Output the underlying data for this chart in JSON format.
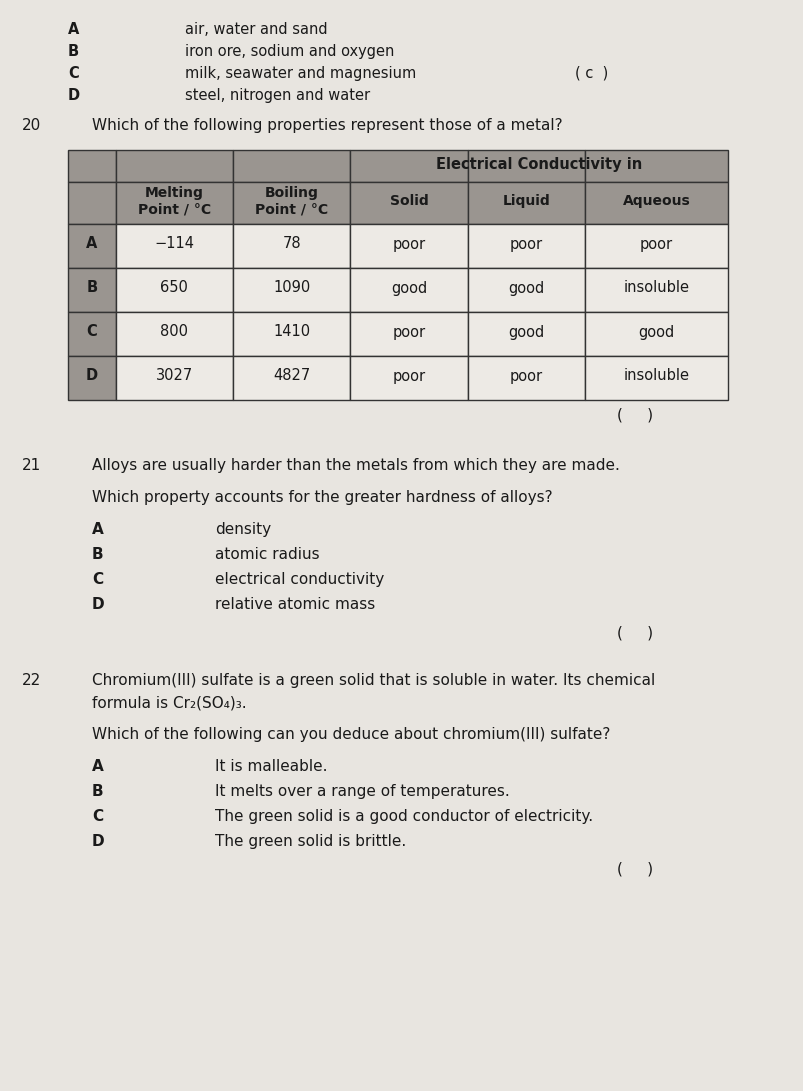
{
  "bg_color": "#c8c4c0",
  "paper_color": "#e8e5e0",
  "text_color": "#1a1a1a",
  "top_section": {
    "labels": [
      "A",
      "B",
      "C",
      "D"
    ],
    "options": [
      "air, water and sand",
      "iron ore, sodium and oxygen",
      "milk, seawater and magnesium",
      "steel, nitrogen and water"
    ],
    "answer_text": "( c  )"
  },
  "q20": {
    "num": "20",
    "question": "Which of the following properties represent those of a metal?",
    "table": {
      "sub_headers": [
        "",
        "Melting\nPoint / °C",
        "Boiling\nPoint / °C",
        "Solid",
        "Liquid",
        "Aqueous"
      ],
      "rows": [
        [
          "A",
          "−114",
          "78",
          "poor",
          "poor",
          "poor"
        ],
        [
          "B",
          "650",
          "1090",
          "good",
          "good",
          "insoluble"
        ],
        [
          "C",
          "800",
          "1410",
          "poor",
          "good",
          "good"
        ],
        [
          "D",
          "3027",
          "4827",
          "poor",
          "poor",
          "insoluble"
        ]
      ],
      "header_bg": "#9a9590",
      "cell_bg": "#edeae5",
      "border_color": "#333333"
    },
    "answer_text": "(     )"
  },
  "q21": {
    "num": "21",
    "stem1": "Alloys are usually harder than the metals from which they are made.",
    "stem2": "Which property accounts for the greater hardness of alloys?",
    "labels": [
      "A",
      "B",
      "C",
      "D"
    ],
    "options": [
      "density",
      "atomic radius",
      "electrical conductivity",
      "relative atomic mass"
    ],
    "answer_text": "(     )"
  },
  "q22": {
    "num": "22",
    "stem1a": "Chromium(III) sulfate is a green solid that is soluble in water. Its chemical",
    "stem1b": "formula is Cr₂(SO₄)₃.",
    "stem2": "Which of the following can you deduce about chromium(III) sulfate?",
    "labels": [
      "A",
      "B",
      "C",
      "D"
    ],
    "options": [
      "It is malleable.",
      "It melts over a range of temperatures.",
      "The green solid is a good conductor of electricity.",
      "The green solid is brittle."
    ],
    "answer_text": "(     )"
  }
}
